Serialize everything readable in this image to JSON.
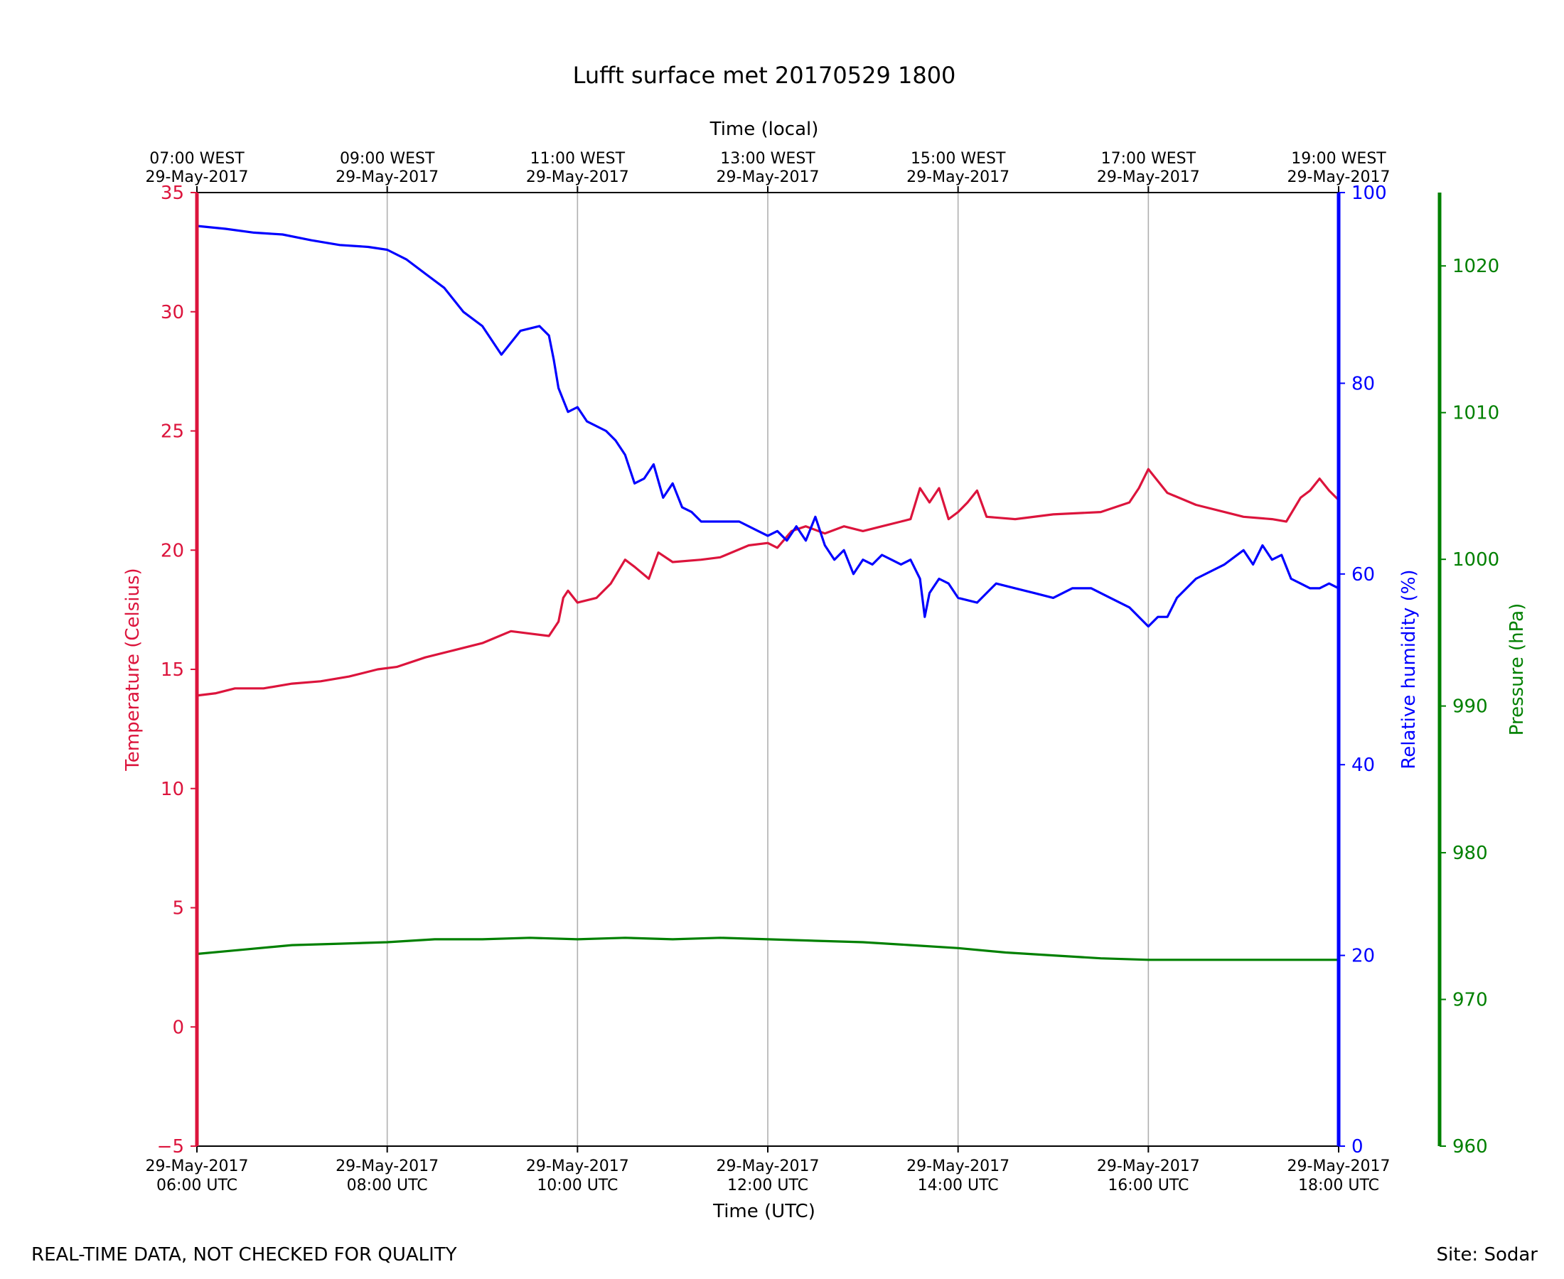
{
  "chart_data": {
    "type": "line",
    "title": "Lufft surface met 20170529 1800",
    "xlabel": "Time (UTC)",
    "xlabel_top": "Time (local)",
    "x_ticks_bottom": [
      {
        "h": 6,
        "line1": "29-May-2017",
        "line2": "06:00 UTC"
      },
      {
        "h": 8,
        "line1": "29-May-2017",
        "line2": "08:00 UTC"
      },
      {
        "h": 10,
        "line1": "29-May-2017",
        "line2": "10:00 UTC"
      },
      {
        "h": 12,
        "line1": "29-May-2017",
        "line2": "12:00 UTC"
      },
      {
        "h": 14,
        "line1": "29-May-2017",
        "line2": "14:00 UTC"
      },
      {
        "h": 16,
        "line1": "29-May-2017",
        "line2": "16:00 UTC"
      },
      {
        "h": 18,
        "line1": "29-May-2017",
        "line2": "18:00 UTC"
      }
    ],
    "x_ticks_top": [
      {
        "h": 6,
        "line1": "07:00 WEST",
        "line2": "29-May-2017"
      },
      {
        "h": 8,
        "line1": "09:00 WEST",
        "line2": "29-May-2017"
      },
      {
        "h": 10,
        "line1": "11:00 WEST",
        "line2": "29-May-2017"
      },
      {
        "h": 12,
        "line1": "13:00 WEST",
        "line2": "29-May-2017"
      },
      {
        "h": 14,
        "line1": "15:00 WEST",
        "line2": "29-May-2017"
      },
      {
        "h": 16,
        "line1": "17:00 WEST",
        "line2": "29-May-2017"
      },
      {
        "h": 18,
        "line1": "19:00 WEST",
        "line2": "29-May-2017"
      }
    ],
    "xlim_hours_utc": [
      6,
      18
    ],
    "grid": "vertical",
    "axes": {
      "temperature": {
        "label": "Temperature (Celsius)",
        "color": "#dc143c",
        "ylim": [
          -5,
          35
        ],
        "ticks": [
          -5,
          0,
          5,
          10,
          15,
          20,
          25,
          30,
          35
        ],
        "tick_labels": [
          "−5",
          "0",
          "5",
          "10",
          "15",
          "20",
          "25",
          "30",
          "35"
        ]
      },
      "humidity": {
        "label": "Relative humidity (%)",
        "color": "#0000ff",
        "ylim": [
          0,
          100
        ],
        "ticks": [
          0,
          20,
          40,
          60,
          80,
          100
        ],
        "tick_labels": [
          "0",
          "20",
          "40",
          "60",
          "80",
          "100"
        ]
      },
      "pressure": {
        "label": "Pressure (hPa)",
        "color": "#008000",
        "ylim": [
          960,
          1025
        ],
        "ticks": [
          960,
          970,
          980,
          990,
          1000,
          1010,
          1020
        ],
        "tick_labels": [
          "960",
          "970",
          "980",
          "990",
          "1000",
          "1010",
          "1020"
        ]
      }
    },
    "series": [
      {
        "name": "Temperature",
        "axis": "temperature",
        "color": "#dc143c",
        "points": [
          [
            6.0,
            13.9
          ],
          [
            6.2,
            14.0
          ],
          [
            6.4,
            14.2
          ],
          [
            6.7,
            14.2
          ],
          [
            7.0,
            14.4
          ],
          [
            7.3,
            14.5
          ],
          [
            7.6,
            14.7
          ],
          [
            7.9,
            15.0
          ],
          [
            8.1,
            15.1
          ],
          [
            8.4,
            15.5
          ],
          [
            8.7,
            15.8
          ],
          [
            9.0,
            16.1
          ],
          [
            9.3,
            16.6
          ],
          [
            9.5,
            16.5
          ],
          [
            9.7,
            16.4
          ],
          [
            9.8,
            17.0
          ],
          [
            9.85,
            18.0
          ],
          [
            9.9,
            18.3
          ],
          [
            10.0,
            17.8
          ],
          [
            10.2,
            18.0
          ],
          [
            10.35,
            18.6
          ],
          [
            10.5,
            19.6
          ],
          [
            10.6,
            19.3
          ],
          [
            10.75,
            18.8
          ],
          [
            10.85,
            19.9
          ],
          [
            11.0,
            19.5
          ],
          [
            11.3,
            19.6
          ],
          [
            11.5,
            19.7
          ],
          [
            11.8,
            20.2
          ],
          [
            12.0,
            20.3
          ],
          [
            12.1,
            20.1
          ],
          [
            12.25,
            20.8
          ],
          [
            12.4,
            21.0
          ],
          [
            12.6,
            20.7
          ],
          [
            12.8,
            21.0
          ],
          [
            13.0,
            20.8
          ],
          [
            13.2,
            21.0
          ],
          [
            13.4,
            21.2
          ],
          [
            13.5,
            21.3
          ],
          [
            13.6,
            22.6
          ],
          [
            13.7,
            22.0
          ],
          [
            13.8,
            22.6
          ],
          [
            13.9,
            21.3
          ],
          [
            14.0,
            21.6
          ],
          [
            14.1,
            22.0
          ],
          [
            14.2,
            22.5
          ],
          [
            14.3,
            21.4
          ],
          [
            14.6,
            21.3
          ],
          [
            15.0,
            21.5
          ],
          [
            15.5,
            21.6
          ],
          [
            15.8,
            22.0
          ],
          [
            15.9,
            22.6
          ],
          [
            16.0,
            23.4
          ],
          [
            16.2,
            22.4
          ],
          [
            16.5,
            21.9
          ],
          [
            16.8,
            21.6
          ],
          [
            17.0,
            21.4
          ],
          [
            17.3,
            21.3
          ],
          [
            17.45,
            21.2
          ],
          [
            17.6,
            22.2
          ],
          [
            17.7,
            22.5
          ],
          [
            17.8,
            23.0
          ],
          [
            17.9,
            22.5
          ],
          [
            18.0,
            22.1
          ]
        ]
      },
      {
        "name": "Relative humidity",
        "axis": "humidity",
        "color": "#0000ff",
        "points": [
          [
            6.0,
            96.5
          ],
          [
            6.3,
            96.2
          ],
          [
            6.6,
            95.8
          ],
          [
            6.9,
            95.6
          ],
          [
            7.2,
            95.0
          ],
          [
            7.5,
            94.5
          ],
          [
            7.8,
            94.3
          ],
          [
            8.0,
            94.0
          ],
          [
            8.2,
            93.0
          ],
          [
            8.4,
            91.5
          ],
          [
            8.6,
            90.0
          ],
          [
            8.8,
            87.5
          ],
          [
            9.0,
            86.0
          ],
          [
            9.1,
            84.5
          ],
          [
            9.2,
            83.0
          ],
          [
            9.4,
            85.5
          ],
          [
            9.6,
            86.0
          ],
          [
            9.7,
            85.0
          ],
          [
            9.75,
            82.5
          ],
          [
            9.8,
            79.5
          ],
          [
            9.9,
            77.0
          ],
          [
            10.0,
            77.5
          ],
          [
            10.1,
            76.0
          ],
          [
            10.3,
            75.0
          ],
          [
            10.4,
            74.0
          ],
          [
            10.5,
            72.5
          ],
          [
            10.6,
            69.5
          ],
          [
            10.7,
            70.0
          ],
          [
            10.8,
            71.5
          ],
          [
            10.9,
            68.0
          ],
          [
            11.0,
            69.5
          ],
          [
            11.1,
            67.0
          ],
          [
            11.2,
            66.5
          ],
          [
            11.3,
            65.5
          ],
          [
            11.5,
            65.5
          ],
          [
            11.7,
            65.5
          ],
          [
            11.9,
            64.5
          ],
          [
            12.0,
            64.0
          ],
          [
            12.1,
            64.5
          ],
          [
            12.2,
            63.5
          ],
          [
            12.3,
            65.0
          ],
          [
            12.4,
            63.5
          ],
          [
            12.5,
            66.0
          ],
          [
            12.6,
            63.0
          ],
          [
            12.7,
            61.5
          ],
          [
            12.8,
            62.5
          ],
          [
            12.9,
            60.0
          ],
          [
            13.0,
            61.5
          ],
          [
            13.1,
            61.0
          ],
          [
            13.2,
            62.0
          ],
          [
            13.3,
            61.5
          ],
          [
            13.4,
            61.0
          ],
          [
            13.5,
            61.5
          ],
          [
            13.6,
            59.5
          ],
          [
            13.65,
            55.5
          ],
          [
            13.7,
            58.0
          ],
          [
            13.8,
            59.5
          ],
          [
            13.9,
            59.0
          ],
          [
            14.0,
            57.5
          ],
          [
            14.2,
            57.0
          ],
          [
            14.4,
            59.0
          ],
          [
            14.6,
            58.5
          ],
          [
            14.8,
            58.0
          ],
          [
            15.0,
            57.5
          ],
          [
            15.2,
            58.5
          ],
          [
            15.4,
            58.5
          ],
          [
            15.6,
            57.5
          ],
          [
            15.8,
            56.5
          ],
          [
            15.9,
            55.5
          ],
          [
            16.0,
            54.5
          ],
          [
            16.1,
            55.5
          ],
          [
            16.2,
            55.5
          ],
          [
            16.3,
            57.5
          ],
          [
            16.5,
            59.5
          ],
          [
            16.8,
            61.0
          ],
          [
            17.0,
            62.5
          ],
          [
            17.1,
            61.0
          ],
          [
            17.2,
            63.0
          ],
          [
            17.3,
            61.5
          ],
          [
            17.4,
            62.0
          ],
          [
            17.5,
            59.5
          ],
          [
            17.6,
            59.0
          ],
          [
            17.7,
            58.5
          ],
          [
            17.8,
            58.5
          ],
          [
            17.9,
            59.0
          ],
          [
            18.0,
            58.5
          ]
        ]
      },
      {
        "name": "Pressure",
        "axis": "pressure",
        "color": "#008000",
        "points": [
          [
            6.0,
            973.1
          ],
          [
            6.5,
            973.4
          ],
          [
            7.0,
            973.7
          ],
          [
            7.5,
            973.8
          ],
          [
            8.0,
            973.9
          ],
          [
            8.5,
            974.1
          ],
          [
            9.0,
            974.1
          ],
          [
            9.5,
            974.2
          ],
          [
            10.0,
            974.1
          ],
          [
            10.5,
            974.2
          ],
          [
            11.0,
            974.1
          ],
          [
            11.5,
            974.2
          ],
          [
            12.0,
            974.1
          ],
          [
            12.5,
            974.0
          ],
          [
            13.0,
            973.9
          ],
          [
            13.5,
            973.7
          ],
          [
            14.0,
            973.5
          ],
          [
            14.5,
            973.2
          ],
          [
            15.0,
            973.0
          ],
          [
            15.5,
            972.8
          ],
          [
            16.0,
            972.7
          ],
          [
            16.5,
            972.7
          ],
          [
            17.0,
            972.7
          ],
          [
            17.5,
            972.7
          ],
          [
            18.0,
            972.7
          ]
        ]
      }
    ]
  },
  "footer": {
    "note": "REAL-TIME DATA, NOT CHECKED FOR QUALITY",
    "site": "Site: Sodar"
  }
}
